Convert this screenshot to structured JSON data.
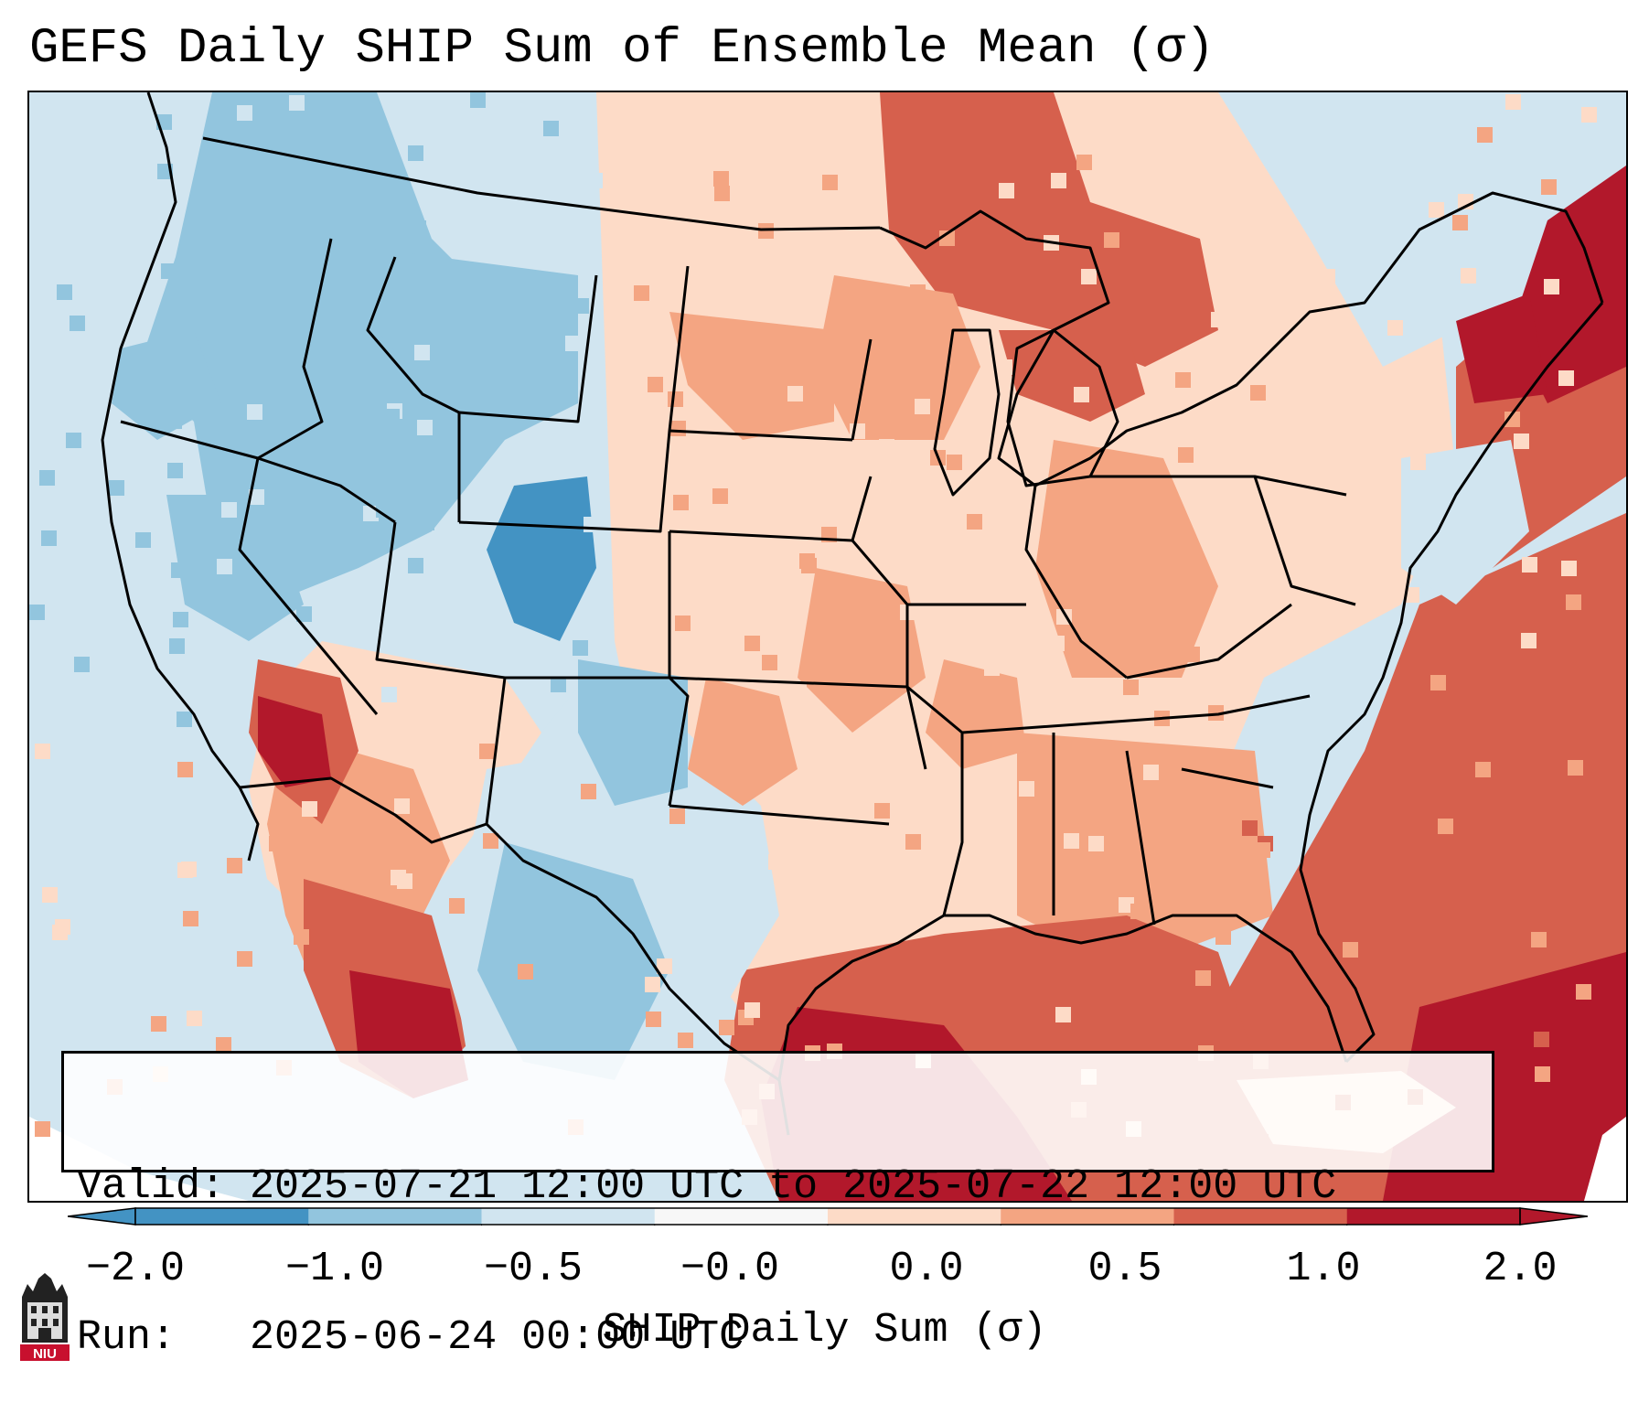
{
  "title": "GEFS Daily SHIP Sum of Ensemble Mean (σ)",
  "info": {
    "valid_line": "Valid: 2025-07-21 12:00 UTC to 2025-07-22 12:00 UTC",
    "run_line": "Run:   2025-06-24 00:00 UTC"
  },
  "colorbar": {
    "label": "SHIP Daily Sum (σ)",
    "ticks": [
      "−2.0",
      "−1.0",
      "−0.5",
      "−0.0",
      "0.0",
      "0.5",
      "1.0",
      "2.0"
    ],
    "colors": [
      "#4393c3",
      "#92c5de",
      "#d1e5f0",
      "#f7f7f7",
      "#fddbc7",
      "#f4a582",
      "#d6604d",
      "#b2182b"
    ],
    "extend": "both"
  },
  "logo": {
    "text": "NIU"
  },
  "map": {
    "region": "Contiguous United States",
    "palette": {
      "ocean_neutral": "#d1e5f0",
      "strong_negative": "#4393c3",
      "moderate_negative": "#92c5de",
      "slight_negative": "#d1e5f0",
      "slight_positive": "#fddbc7",
      "moderate_positive": "#f4a582",
      "strong_positive": "#d6604d",
      "extreme_positive": "#b2182b",
      "borders": "#000000"
    }
  }
}
